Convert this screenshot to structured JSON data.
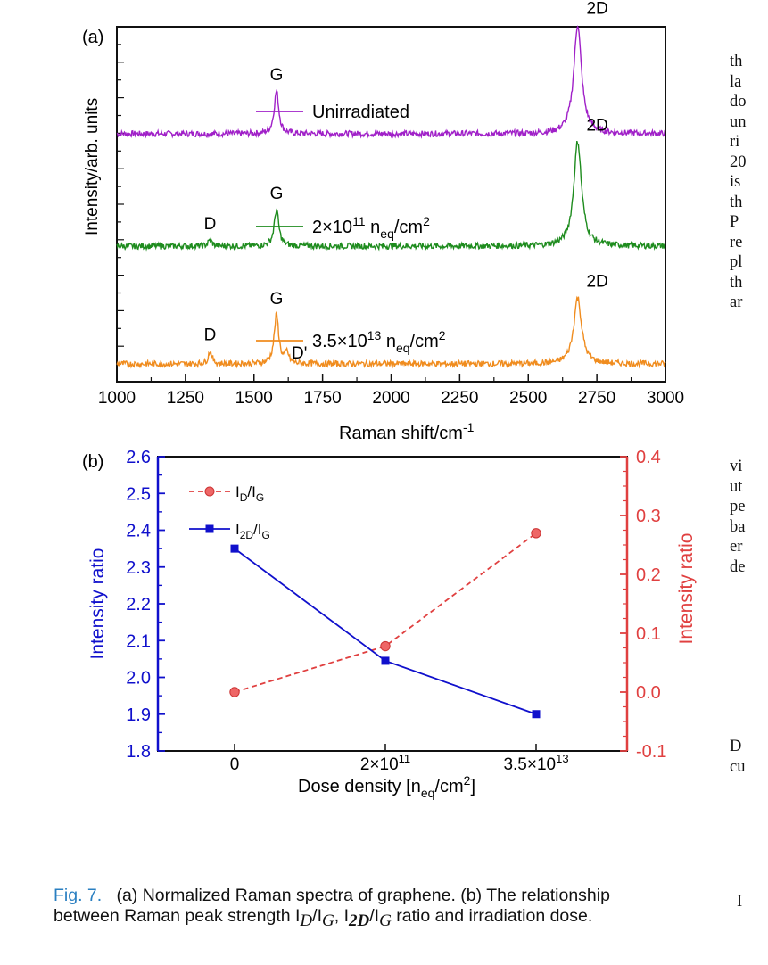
{
  "caption": {
    "fig_label": "Fig. 7.",
    "line1": "(a) Normalized Raman spectra of graphene. (b) The relationship",
    "line2_pre": "between Raman peak strength I",
    "sub_d": "D",
    "slash1": "/I",
    "sub_g1": "G",
    "comma": ", I",
    "sub_2d": "2D",
    "slash2": "/I",
    "sub_g2": "G",
    "line2_post": " ratio and irradiation dose."
  },
  "side_text": {
    "block1": [
      "th",
      "la",
      "do",
      "un",
      "ri",
      "20",
      "is",
      "th",
      "P",
      "re",
      "pl",
      "th",
      "ar"
    ],
    "block2": [
      "vi",
      "ut",
      "pe",
      "ba",
      "er",
      "de"
    ],
    "block3": [
      "D",
      "cu"
    ],
    "block4": [
      "I"
    ]
  },
  "chart_data": [
    {
      "type": "line",
      "panel_label": "(a)",
      "xlabel": "Raman shift/cm",
      "xlabel_sup": "-1",
      "ylabel": "Intensity/arb. units",
      "xlim": [
        1000,
        3000
      ],
      "x_ticks": [
        1000,
        1250,
        1500,
        1750,
        2000,
        2250,
        2500,
        2750,
        3000
      ],
      "series": [
        {
          "name": "Unirradiated",
          "color": "#a020c8",
          "baseline": 0.0,
          "peaks": [
            {
              "label": "G",
              "x": 1582,
              "height": 1.0
            },
            {
              "label": "2D",
              "x": 2680,
              "height": 2.55
            }
          ]
        },
        {
          "name": "2×10",
          "name_sup": "11",
          "name_rest": " n",
          "name_sub": "eq",
          "name_tail": "/cm",
          "name_tail_sup": "2",
          "color": "#1e8c1e",
          "peaks": [
            {
              "label": "D",
              "x": 1340,
              "height": 0.15
            },
            {
              "label": "G",
              "x": 1582,
              "height": 0.85
            },
            {
              "label": "2D",
              "x": 2680,
              "height": 2.45
            }
          ]
        },
        {
          "name": "3.5×10",
          "name_sup": "13",
          "name_rest": " n",
          "name_sub": "eq",
          "name_tail": "/cm",
          "name_tail_sup": "2",
          "color": "#f08c1e",
          "peaks": [
            {
              "label": "D",
              "x": 1340,
              "height": 0.3
            },
            {
              "label": "G",
              "x": 1582,
              "height": 1.15
            },
            {
              "label": "D'",
              "x": 1620,
              "height": 0.25
            },
            {
              "label": "2D",
              "x": 2680,
              "height": 1.55
            }
          ]
        }
      ]
    },
    {
      "type": "line",
      "panel_label": "(b)",
      "xlabel": "Dose density [n",
      "xlabel_sub": "eq",
      "xlabel_tail": "/cm",
      "xlabel_sup": "2",
      "xlabel_end": "]",
      "ylabel_left": "Intensity ratio",
      "ylabel_right": "Intensity ratio",
      "categories": [
        "0",
        "2×10",
        "3.5×10"
      ],
      "category_sups": [
        "",
        "11",
        "13"
      ],
      "ylim_left": [
        1.8,
        2.6
      ],
      "yticks_left": [
        "1.8",
        "1.9",
        "2.0",
        "2.1",
        "2.2",
        "2.3",
        "2.4",
        "2.5",
        "2.6"
      ],
      "ylim_right": [
        -0.1,
        0.4
      ],
      "yticks_right": [
        "-0.1",
        "0.0",
        "0.1",
        "0.2",
        "0.3",
        "0.4"
      ],
      "left_color": "#1010cc",
      "right_color": "#e04040",
      "series": [
        {
          "name_main": "I",
          "name_sub1": "D",
          "name_mid": "/I",
          "name_sub2": "G",
          "axis": "right",
          "color": "#e04040",
          "values": [
            0.0,
            0.078,
            0.27
          ]
        },
        {
          "name_main": "I",
          "name_sub1": "2D",
          "name_mid": "/I",
          "name_sub2": "G",
          "axis": "left",
          "color": "#1010cc",
          "values": [
            2.35,
            2.045,
            1.9
          ]
        }
      ]
    }
  ]
}
